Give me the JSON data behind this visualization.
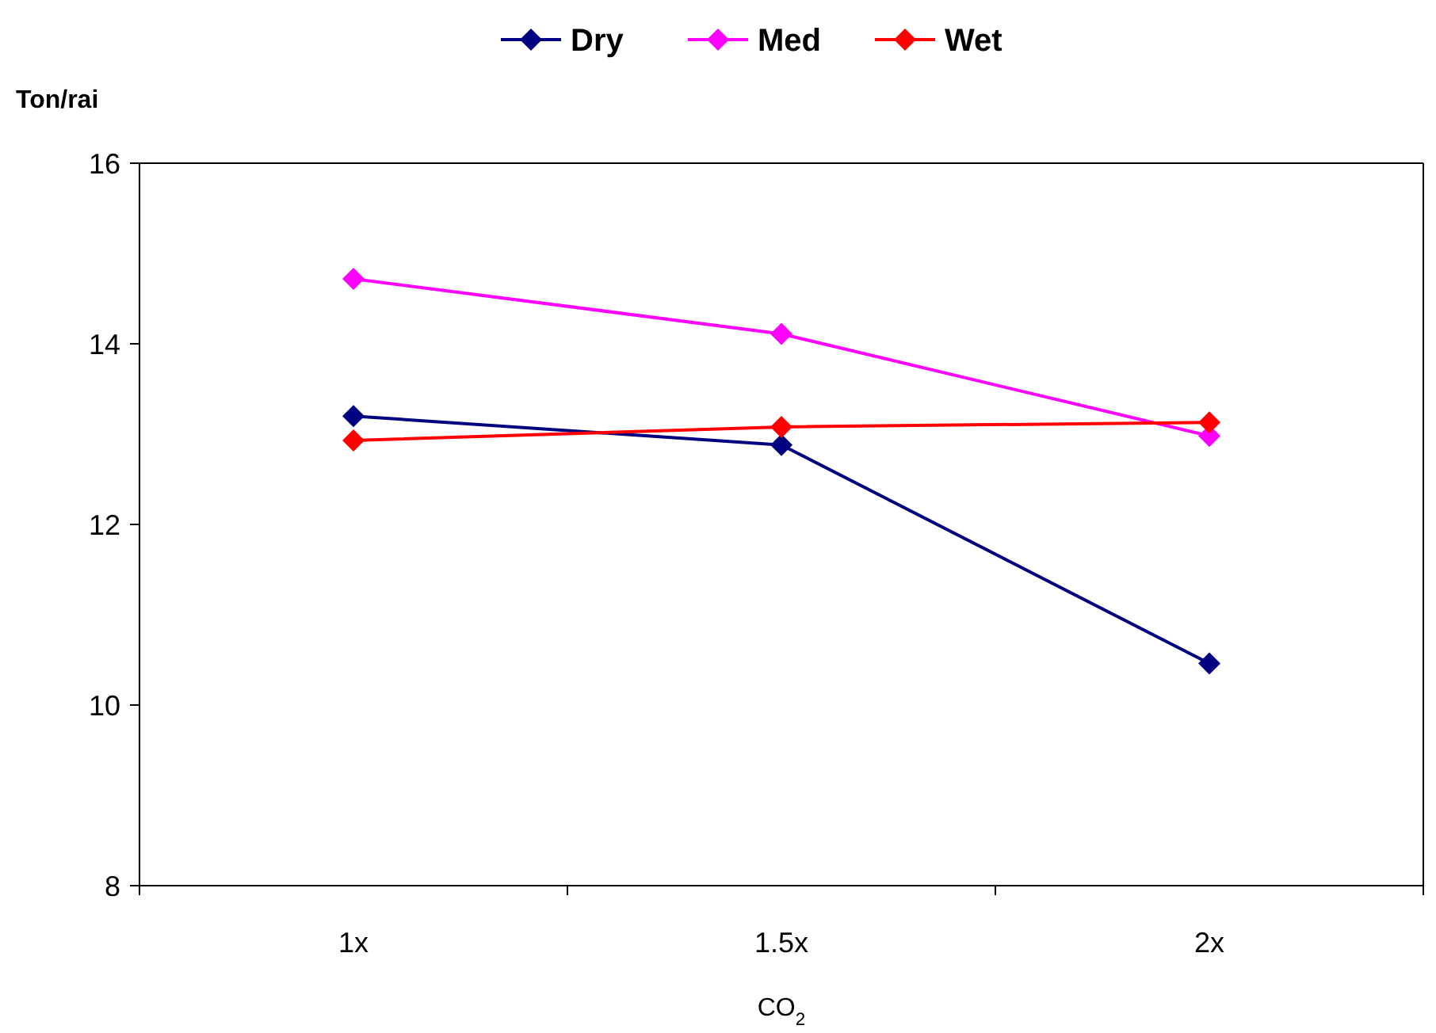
{
  "chart_data": {
    "type": "line",
    "xlabel": "CO$_{2}$",
    "ylabel": "Ton/rai",
    "categories": [
      "1x",
      "1.5x",
      "2x"
    ],
    "series": [
      {
        "name": "Dry",
        "color": "#000080",
        "values": [
          13.2,
          12.88,
          10.46
        ]
      },
      {
        "name": "Med",
        "color": "#ff00ff",
        "values": [
          14.72,
          14.11,
          12.98
        ]
      },
      {
        "name": "Wet",
        "color": "#ff0000",
        "values": [
          12.93,
          13.08,
          13.13
        ]
      }
    ],
    "ylim": [
      8,
      16
    ],
    "yticks": [
      8,
      10,
      12,
      14,
      16
    ],
    "grid": false,
    "legend": "top",
    "marker": "diamond",
    "line_style": "solid"
  }
}
